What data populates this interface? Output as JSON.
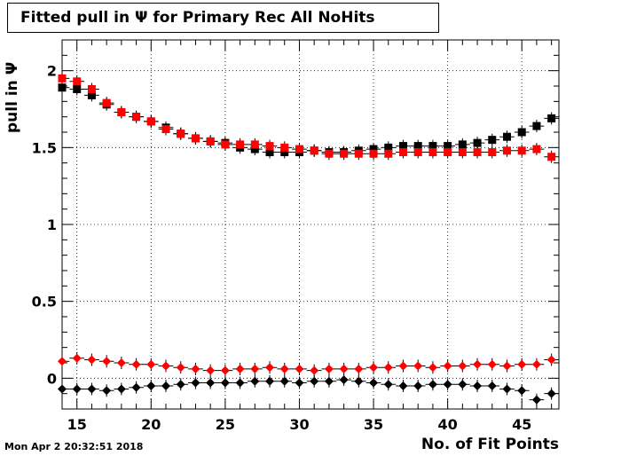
{
  "title": "Fitted pull in  Ψ  for Primary Rec All NoHits",
  "datestamp": "Mon Apr  2 20:32:51 2018",
  "chart_data": {
    "type": "scatter",
    "title": "Fitted pull in  Ψ  for Primary Rec All NoHits",
    "xlabel": "No. of Fit Points",
    "ylabel": "pull in  Ψ",
    "xlim": [
      14,
      47.5
    ],
    "ylim": [
      -0.2,
      2.2
    ],
    "xticks": [
      15,
      20,
      25,
      30,
      35,
      40,
      45
    ],
    "yticks": [
      0,
      0.5,
      1,
      1.5,
      2
    ],
    "grid": true,
    "x": [
      14,
      15,
      16,
      17,
      18,
      19,
      20,
      21,
      22,
      23,
      24,
      25,
      26,
      27,
      28,
      29,
      30,
      31,
      32,
      33,
      34,
      35,
      36,
      37,
      38,
      39,
      40,
      41,
      42,
      43,
      44,
      45,
      46,
      47
    ],
    "series": [
      {
        "marker": "square",
        "color": "#000000",
        "values": [
          1.89,
          1.88,
          1.84,
          1.78,
          1.73,
          1.7,
          1.67,
          1.63,
          1.59,
          1.56,
          1.54,
          1.53,
          1.5,
          1.49,
          1.47,
          1.47,
          1.47,
          1.48,
          1.47,
          1.47,
          1.48,
          1.49,
          1.5,
          1.51,
          1.51,
          1.51,
          1.51,
          1.52,
          1.53,
          1.55,
          1.57,
          1.6,
          1.64,
          1.69
        ]
      },
      {
        "marker": "square",
        "color": "#ff0000",
        "values": [
          1.95,
          1.93,
          1.88,
          1.79,
          1.73,
          1.7,
          1.67,
          1.62,
          1.59,
          1.56,
          1.54,
          1.52,
          1.52,
          1.52,
          1.51,
          1.5,
          1.49,
          1.48,
          1.46,
          1.46,
          1.46,
          1.46,
          1.46,
          1.47,
          1.47,
          1.47,
          1.47,
          1.47,
          1.47,
          1.47,
          1.48,
          1.48,
          1.49,
          1.44
        ]
      },
      {
        "marker": "diamond",
        "color": "#ff0000",
        "values": [
          0.11,
          0.13,
          0.12,
          0.11,
          0.1,
          0.09,
          0.09,
          0.08,
          0.07,
          0.06,
          0.05,
          0.05,
          0.06,
          0.06,
          0.07,
          0.06,
          0.06,
          0.05,
          0.06,
          0.06,
          0.06,
          0.07,
          0.07,
          0.08,
          0.08,
          0.07,
          0.08,
          0.08,
          0.09,
          0.09,
          0.08,
          0.09,
          0.09,
          0.12
        ]
      },
      {
        "marker": "diamond",
        "color": "#000000",
        "values": [
          -0.07,
          -0.07,
          -0.07,
          -0.08,
          -0.07,
          -0.06,
          -0.05,
          -0.05,
          -0.04,
          -0.03,
          -0.03,
          -0.03,
          -0.03,
          -0.02,
          -0.02,
          -0.02,
          -0.03,
          -0.02,
          -0.02,
          -0.01,
          -0.02,
          -0.03,
          -0.04,
          -0.05,
          -0.05,
          -0.04,
          -0.04,
          -0.04,
          -0.05,
          -0.05,
          -0.07,
          -0.08,
          -0.14,
          -0.1
        ]
      }
    ]
  }
}
